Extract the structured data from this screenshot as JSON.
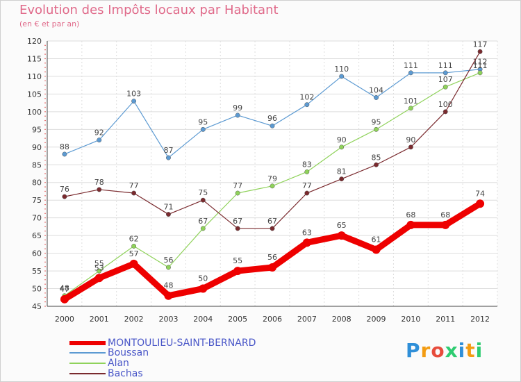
{
  "chart_data": {
    "type": "line",
    "title": "Evolution des Impôts locaux par Habitant",
    "subtitle": "(en € et par an)",
    "x": [
      "2000",
      "2001",
      "2002",
      "2003",
      "2004",
      "2005",
      "2006",
      "2007",
      "2008",
      "2009",
      "2010",
      "2011",
      "2012"
    ],
    "ylim": [
      45,
      120
    ],
    "yticks": [
      "45",
      "50",
      "55",
      "60",
      "65",
      "70",
      "75",
      "80",
      "85",
      "90",
      "95",
      "100",
      "105",
      "110",
      "115",
      "120"
    ],
    "series": [
      {
        "name": "Boussan",
        "color": "#5c9ad2",
        "values": [
          88,
          92,
          103,
          87,
          95,
          99,
          96,
          102,
          110,
          104,
          111,
          111,
          112
        ]
      },
      {
        "name": "Alan",
        "color": "#8fd25a",
        "values": [
          48,
          55,
          62,
          56,
          67,
          77,
          79,
          83,
          90,
          95,
          101,
          107,
          111
        ]
      },
      {
        "name": "Bachas",
        "color": "#7a2a2e",
        "values": [
          76,
          78,
          77,
          71,
          75,
          67,
          67,
          77,
          81,
          85,
          90,
          100,
          117
        ]
      },
      {
        "name": "MONTOULIEU-SAINT-BERNARD",
        "color": "#ee0000",
        "values": [
          47,
          53,
          57,
          48,
          50,
          55,
          56,
          63,
          65,
          61,
          68,
          68,
          74
        ]
      }
    ],
    "legend": [
      "MONTOULIEU-SAINT-BERNARD",
      "Boussan",
      "Alan",
      "Bachas"
    ]
  },
  "logo": {
    "letters": [
      "P",
      "r",
      "o",
      "x",
      "i",
      "t",
      "i"
    ],
    "colors": [
      "#2f8fd8",
      "#f39c12",
      "#e74c3c",
      "#2ecc71",
      "#2f8fd8",
      "#f39c12",
      "#2ecc71"
    ]
  }
}
